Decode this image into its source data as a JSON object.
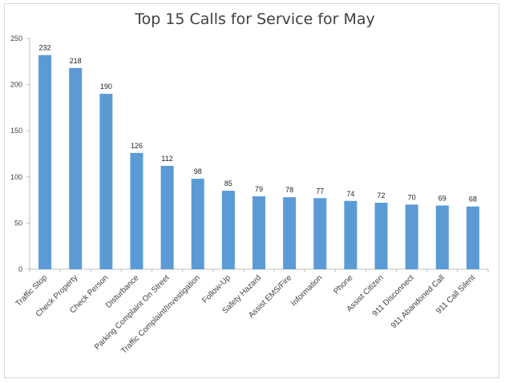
{
  "chart_data": {
    "type": "bar",
    "title": "Top 15 Calls for Service for May",
    "xlabel": "",
    "ylabel": "",
    "ylim": [
      0,
      250
    ],
    "yticks": [
      0,
      50,
      100,
      150,
      200,
      250
    ],
    "grid": false,
    "legend": "none",
    "bar_color": "#5b9bd5",
    "categories": [
      "Traffic Stop",
      "Check Property",
      "Check Person",
      "Disturbance",
      "Parking Complaint On Street",
      "Traffic Complaint/Investigation",
      "Follow-Up",
      "Safety Hazard",
      "Assist EMS/Fire",
      "Information",
      "Phone",
      "Assist Citizen",
      "911 Disconnect",
      "911 Abandoned Call",
      "911 Call Silent"
    ],
    "values": [
      232,
      218,
      190,
      126,
      112,
      98,
      85,
      79,
      78,
      77,
      74,
      72,
      70,
      69,
      68
    ]
  }
}
